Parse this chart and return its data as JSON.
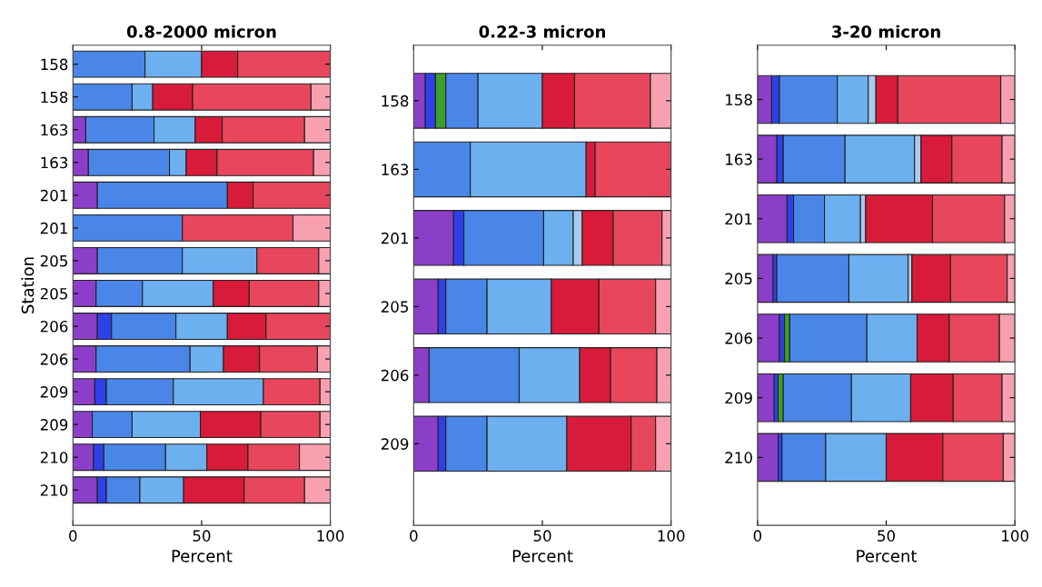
{
  "chart_data": [
    {
      "type": "bar",
      "orientation": "horizontal",
      "stacked": true,
      "title": "0.8-2000 micron",
      "xlabel": "Percent",
      "ylabel": "Station",
      "xlim": [
        0,
        100
      ],
      "xticks": [
        0,
        50,
        100
      ],
      "grid": false,
      "categories": [
        "158",
        "158",
        "163",
        "163",
        "201",
        "201",
        "205",
        "205",
        "206",
        "206",
        "209",
        "209",
        "210",
        "210"
      ],
      "series": [
        {
          "color": "#8b3fc8",
          "values": [
            null,
            null,
            5,
            6,
            9.5,
            null,
            9.5,
            9,
            9.5,
            9,
            8.5,
            7.5,
            8,
            9.5
          ]
        },
        {
          "color": "#3040e8",
          "values": [
            null,
            null,
            null,
            null,
            null,
            null,
            null,
            null,
            5.5,
            null,
            4.5,
            null,
            4,
            3.5
          ]
        },
        {
          "color": "#4a86e8",
          "values": [
            28,
            23,
            26.5,
            31.5,
            50.5,
            42.5,
            33,
            18,
            25,
            36.5,
            26,
            15.5,
            24,
            13
          ]
        },
        {
          "color": "#6cb0f0",
          "values": [
            22,
            8,
            16,
            6.5,
            null,
            null,
            29,
            27.5,
            20,
            13,
            35,
            26.5,
            16,
            17
          ]
        },
        {
          "color": "#d81b3a",
          "values": [
            14,
            15.5,
            10.5,
            12,
            10,
            null,
            null,
            14,
            15,
            14,
            null,
            23.5,
            16,
            23.5
          ]
        },
        {
          "color": "#e8465c",
          "values": [
            36,
            46,
            32,
            37.5,
            30,
            43,
            24,
            27,
            25,
            22.5,
            22,
            23,
            20,
            23.5
          ]
        },
        {
          "color": "#f8a0b0",
          "values": [
            null,
            7.5,
            10,
            6.5,
            null,
            14.5,
            4.5,
            4.5,
            null,
            5,
            4,
            4,
            12,
            10
          ]
        }
      ]
    },
    {
      "type": "bar",
      "orientation": "horizontal",
      "stacked": true,
      "title": "0.22-3 micron",
      "xlabel": "Percent",
      "xlim": [
        0,
        100
      ],
      "xticks": [
        0,
        50,
        100
      ],
      "grid": false,
      "categories": [
        "158",
        "163",
        "201",
        "205",
        "206",
        "209"
      ],
      "series": [
        {
          "color": "#8b3fc8",
          "values": [
            4.5,
            null,
            15.5,
            9.5,
            6,
            9.5
          ]
        },
        {
          "color": "#3040e8",
          "values": [
            4,
            null,
            4,
            3,
            null,
            3
          ]
        },
        {
          "color": "#3aa02a",
          "values": [
            4,
            null,
            null,
            null,
            null,
            null
          ]
        },
        {
          "color": "#4a86e8",
          "values": [
            12.5,
            22,
            31,
            16,
            35,
            16
          ]
        },
        {
          "color": "#6cb0f0",
          "values": [
            25,
            45,
            11.5,
            25,
            23.5,
            31
          ]
        },
        {
          "color": "#a8ccf0",
          "values": [
            null,
            null,
            3.5,
            null,
            null,
            null
          ]
        },
        {
          "color": "#d81b3a",
          "values": [
            12.5,
            3.5,
            12,
            18.5,
            12,
            25
          ]
        },
        {
          "color": "#e8465c",
          "values": [
            29.5,
            29.5,
            19,
            22,
            18,
            9.5
          ]
        },
        {
          "color": "#f8a0b0",
          "values": [
            8,
            null,
            3.5,
            6,
            5.5,
            6
          ]
        }
      ]
    },
    {
      "type": "bar",
      "orientation": "horizontal",
      "stacked": true,
      "title": "3-20 micron",
      "xlabel": "Percent",
      "xlim": [
        0,
        100
      ],
      "xticks": [
        0,
        50,
        100
      ],
      "grid": false,
      "categories": [
        "158",
        "163",
        "201",
        "205",
        "206",
        "209",
        "210"
      ],
      "series": [
        {
          "color": "#8b3fc8",
          "values": [
            5.5,
            7.5,
            11.5,
            6,
            8.5,
            6.5,
            8
          ]
        },
        {
          "color": "#3040e8",
          "values": [
            3,
            2.5,
            2.5,
            1.5,
            2,
            1.5,
            1.5
          ]
        },
        {
          "color": "#3aa02a",
          "values": [
            null,
            null,
            null,
            null,
            2,
            2,
            null
          ]
        },
        {
          "color": "#4a86e8",
          "values": [
            22.5,
            24,
            12,
            28,
            30,
            26.5,
            17
          ]
        },
        {
          "color": "#6cb0f0",
          "values": [
            12,
            27,
            14,
            23,
            19.5,
            23,
            23.5
          ]
        },
        {
          "color": "#a8ccf0",
          "values": [
            3,
            2.5,
            2,
            1.5,
            null,
            null,
            null
          ]
        },
        {
          "color": "#d81b3a",
          "values": [
            8.5,
            12,
            26,
            15,
            12.5,
            16.5,
            22
          ]
        },
        {
          "color": "#e8465c",
          "values": [
            40,
            19.5,
            28,
            22,
            19.5,
            19,
            23.5
          ]
        },
        {
          "color": "#f8a0b0",
          "values": [
            5.5,
            5,
            4,
            3,
            6,
            5,
            4.5
          ]
        }
      ]
    }
  ]
}
